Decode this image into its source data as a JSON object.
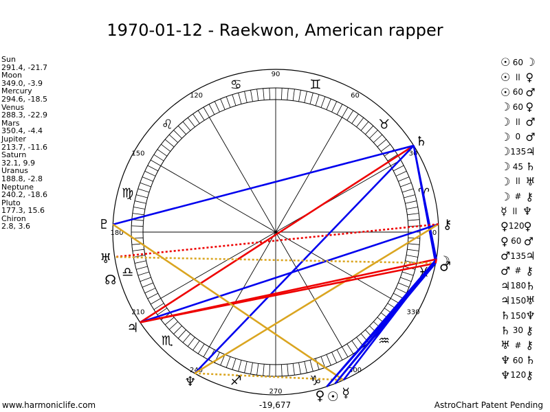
{
  "title": "1970-01-12 - Raekwon, American rapper",
  "planets": [
    {
      "name": "Sun",
      "value": "291.4, -21.7",
      "glyph": "☉",
      "lon": 291.4
    },
    {
      "name": "Moon",
      "value": "349.0, -3.9",
      "glyph": "☽",
      "lon": 349.0
    },
    {
      "name": "Mercury",
      "value": "294.6, -18.5",
      "glyph": "☿",
      "lon": 294.6
    },
    {
      "name": "Venus",
      "value": "288.3, -22.9",
      "glyph": "♀",
      "lon": 288.3
    },
    {
      "name": "Mars",
      "value": "350.4, -4.4",
      "glyph": "♂",
      "lon": 350.4
    },
    {
      "name": "Jupiter",
      "value": "213.7, -11.6",
      "glyph": "♃",
      "lon": 213.7
    },
    {
      "name": "Saturn",
      "value": "32.1, 9.9",
      "glyph": "♄",
      "lon": 32.1
    },
    {
      "name": "Uranus",
      "value": "188.8, -2.8",
      "glyph": "♅",
      "lon": 188.8
    },
    {
      "name": "Neptune",
      "value": "240.2, -18.6",
      "glyph": "♆",
      "lon": 240.2
    },
    {
      "name": "Pluto",
      "value": "177.3, 15.6",
      "glyph": "♇",
      "lon": 177.3
    },
    {
      "name": "Chiron",
      "value": "2.8, 3.6",
      "glyph": "⚷",
      "lon": 2.8
    }
  ],
  "node_glyph": "☊",
  "node_lon": 196.0,
  "sign_glyphs": [
    "♈",
    "♉",
    "♊",
    "♋",
    "♌",
    "♍",
    "♎",
    "♏",
    "♐",
    "♑",
    "♒",
    "♓"
  ],
  "degree_labels": [
    {
      "deg": 0,
      "text": "0"
    },
    {
      "deg": 30,
      "text": "30"
    },
    {
      "deg": 60,
      "text": "60"
    },
    {
      "deg": 90,
      "text": "90"
    },
    {
      "deg": 120,
      "text": "120"
    },
    {
      "deg": 150,
      "text": "150"
    },
    {
      "deg": 180,
      "text": "180"
    },
    {
      "deg": 210,
      "text": "210"
    },
    {
      "deg": 240,
      "text": "240"
    },
    {
      "deg": 270,
      "text": "270"
    },
    {
      "deg": 300,
      "text": "300"
    },
    {
      "deg": 330,
      "text": "330"
    }
  ],
  "aspects": [
    {
      "p1": "☉",
      "sym": "60",
      "p2": "☽"
    },
    {
      "p1": "☉",
      "sym": "ll",
      "p2": "♀"
    },
    {
      "p1": "☉",
      "sym": "60",
      "p2": "♂"
    },
    {
      "p1": "☽",
      "sym": "60",
      "p2": "♀"
    },
    {
      "p1": "☽",
      "sym": "ll",
      "p2": "♂"
    },
    {
      "p1": "☽",
      "sym": "0",
      "p2": "♂"
    },
    {
      "p1": "☽",
      "sym": "135",
      "p2": "♃"
    },
    {
      "p1": "☽",
      "sym": "45",
      "p2": "♄"
    },
    {
      "p1": "☽",
      "sym": "ll",
      "p2": "♅"
    },
    {
      "p1": "☽",
      "sym": "#",
      "p2": "⚷"
    },
    {
      "p1": "☿",
      "sym": "ll",
      "p2": "♆"
    },
    {
      "p1": "♀",
      "sym": "120",
      "p2": "♀"
    },
    {
      "p1": "♀",
      "sym": "60",
      "p2": "♂"
    },
    {
      "p1": "♂",
      "sym": "135",
      "p2": "♃"
    },
    {
      "p1": "♂",
      "sym": "#",
      "p2": "⚷"
    },
    {
      "p1": "♃",
      "sym": "180",
      "p2": "♄"
    },
    {
      "p1": "♃",
      "sym": "150",
      "p2": "♅"
    },
    {
      "p1": "♄",
      "sym": "150",
      "p2": "♆"
    },
    {
      "p1": "♄",
      "sym": "30",
      "p2": "⚷"
    },
    {
      "p1": "♅",
      "sym": "#",
      "p2": "⚷"
    },
    {
      "p1": "♆",
      "sym": "60",
      "p2": "♄"
    },
    {
      "p1": "♆",
      "sym": "120",
      "p2": "⚷"
    }
  ],
  "aspect_lines": [
    {
      "a": 32.1,
      "b": 213.7,
      "color": "#ee0000",
      "dash": false
    },
    {
      "a": 32.1,
      "b": 177.3,
      "color": "#0000ee",
      "dash": false
    },
    {
      "a": 32.1,
      "b": 240.2,
      "color": "#0000ee",
      "dash": false
    },
    {
      "a": 32.1,
      "b": 349.0,
      "color": "#0000ee",
      "dash": false
    },
    {
      "a": 32.1,
      "b": 350.4,
      "color": "#0000ee",
      "dash": false
    },
    {
      "a": 2.8,
      "b": 213.7,
      "color": "#0000ee",
      "dash": false
    },
    {
      "a": 2.8,
      "b": 240.2,
      "color": "#daa520",
      "dash": false
    },
    {
      "a": 2.8,
      "b": 188.8,
      "color": "#ee0000",
      "dash": true
    },
    {
      "a": 349.0,
      "b": 213.7,
      "color": "#ee0000",
      "dash": false
    },
    {
      "a": 350.4,
      "b": 213.7,
      "color": "#ee0000",
      "dash": false
    },
    {
      "a": 349.0,
      "b": 188.8,
      "color": "#daa520",
      "dash": true
    },
    {
      "a": 177.3,
      "b": 294.6,
      "color": "#daa520",
      "dash": false
    },
    {
      "a": 240.2,
      "b": 294.6,
      "color": "#daa520",
      "dash": true
    },
    {
      "a": 349.0,
      "b": 291.4,
      "color": "#0000ee",
      "dash": false
    },
    {
      "a": 350.4,
      "b": 288.3,
      "color": "#0000ee",
      "dash": false
    },
    {
      "a": 349.0,
      "b": 288.3,
      "color": "#0000ee",
      "dash": false
    },
    {
      "a": 350.4,
      "b": 291.4,
      "color": "#0000ee",
      "dash": false
    },
    {
      "a": 350.4,
      "b": 294.6,
      "color": "#0000ee",
      "dash": false
    },
    {
      "a": 349.0,
      "b": 350.4,
      "color": "#ee0000",
      "dash": false
    }
  ],
  "footer_left": "www.harmoniclife.com",
  "footer_mid": "-19,677",
  "footer_right": "AstroChart Patent Pending"
}
